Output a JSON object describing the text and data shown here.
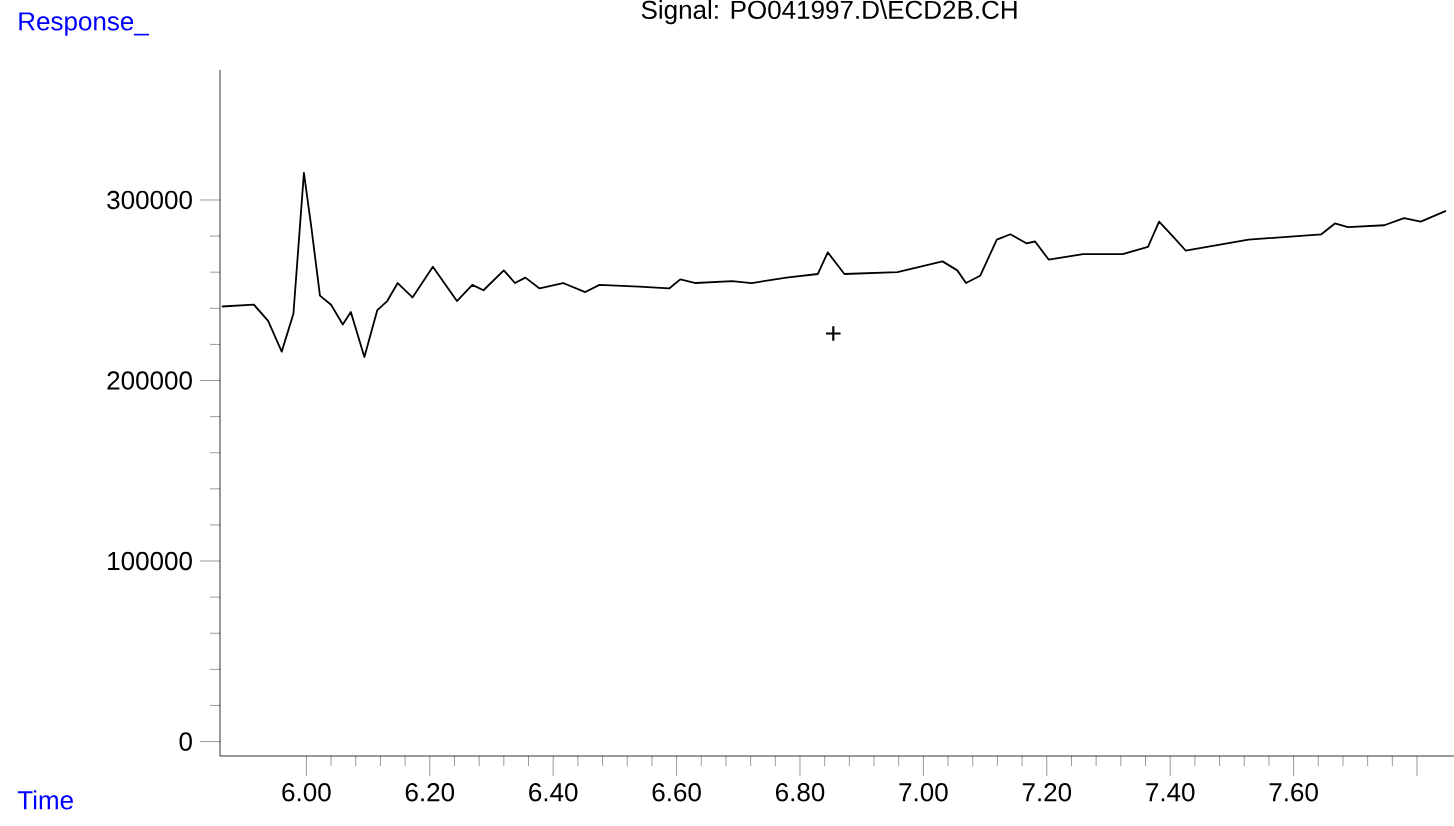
{
  "chart_data": {
    "type": "line",
    "title": "Signal: PO041997.D\\ECD2B.CH",
    "xlabel": "Time",
    "ylabel": "Response_",
    "color": "#000000",
    "x": [
      5.863,
      5.915,
      5.938,
      5.96,
      5.979,
      5.996,
      6.008,
      6.022,
      6.04,
      6.059,
      6.072,
      6.094,
      6.115,
      6.131,
      6.148,
      6.172,
      6.205,
      6.244,
      6.269,
      6.287,
      6.32,
      6.338,
      6.355,
      6.378,
      6.416,
      6.452,
      6.475,
      6.539,
      6.588,
      6.606,
      6.631,
      6.69,
      6.722,
      6.778,
      6.829,
      6.845,
      6.872,
      6.958,
      7.031,
      7.055,
      7.069,
      7.092,
      7.119,
      7.141,
      7.167,
      7.181,
      7.203,
      7.259,
      7.323,
      7.364,
      7.382,
      7.404,
      7.425,
      7.527,
      7.645,
      7.667,
      7.688,
      7.747,
      7.779,
      7.806,
      7.847
    ],
    "values": [
      241000,
      242000,
      233000,
      216000,
      237000,
      315000,
      285000,
      247000,
      242000,
      231000,
      238000,
      213000,
      239000,
      244000,
      254000,
      246000,
      263000,
      244000,
      253000,
      250000,
      261000,
      254000,
      257000,
      251000,
      254000,
      249000,
      253000,
      252000,
      251000,
      256000,
      254000,
      255000,
      254000,
      257000,
      259000,
      271000,
      259000,
      260000,
      266000,
      261000,
      254000,
      258000,
      278000,
      281000,
      276000,
      277000,
      267000,
      270000,
      270000,
      274000,
      288000,
      280000,
      272000,
      278000,
      281000,
      287000,
      285000,
      286000,
      290000,
      288000,
      294000
    ],
    "xlim": [
      5.86,
      7.86
    ],
    "ylim": [
      -8000,
      372000
    ],
    "xticks": [
      {
        "value": 6.0,
        "label": "6.00"
      },
      {
        "value": 6.2,
        "label": "6.20"
      },
      {
        "value": 6.4,
        "label": "6.40"
      },
      {
        "value": 6.6,
        "label": "6.60"
      },
      {
        "value": 6.8,
        "label": "6.80"
      },
      {
        "value": 7.0,
        "label": "7.00"
      },
      {
        "value": 7.2,
        "label": "7.20"
      },
      {
        "value": 7.4,
        "label": "7.40"
      },
      {
        "value": 7.6,
        "label": "7.60"
      },
      {
        "value": 7.8,
        "label": null
      }
    ],
    "yticks": [
      0,
      100000,
      200000,
      300000
    ],
    "annotations": [
      "+"
    ]
  }
}
